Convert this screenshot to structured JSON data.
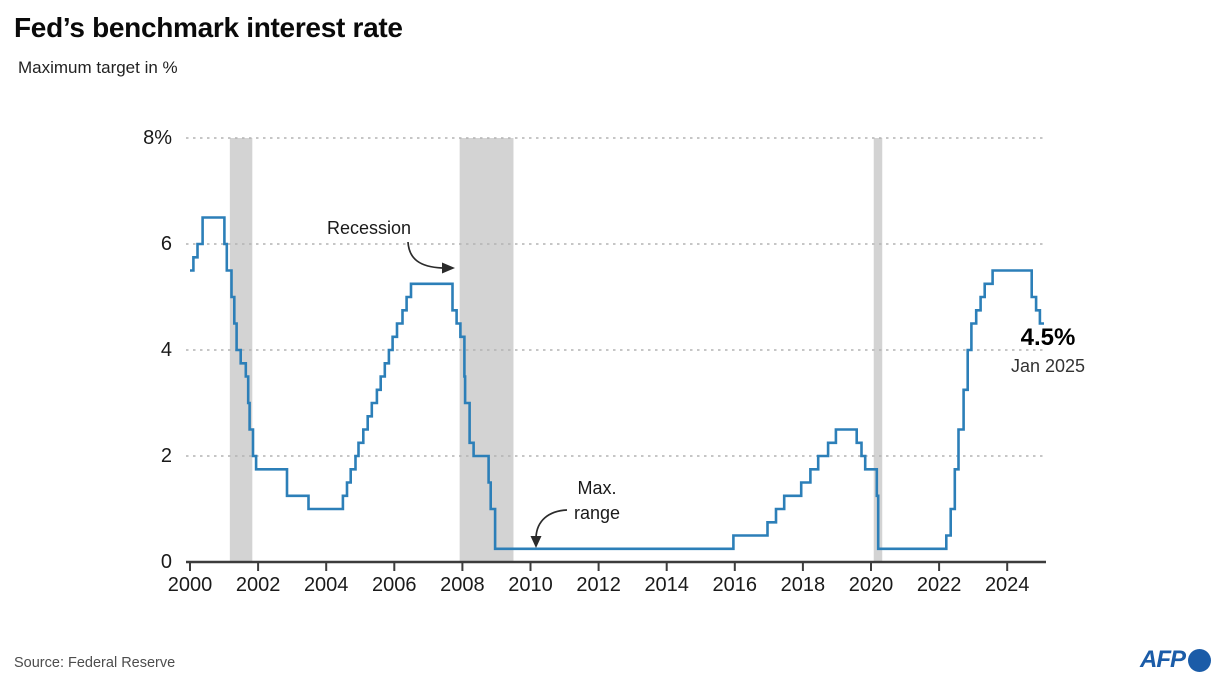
{
  "title": "Fed’s benchmark interest rate",
  "subtitle": "Maximum target in %",
  "source": "Source: Federal Reserve",
  "logo_text": "AFP",
  "colors": {
    "line": "#2c7fb8",
    "recession_band": "#d3d3d3",
    "grid": "#b3b3b3",
    "axis": "#3c3c3c",
    "tick_label": "#1a1a1a",
    "arrow": "#2b2b2b",
    "logo_blue": "#1b5ca8"
  },
  "chart_data": {
    "type": "line",
    "line_style": "step-after",
    "title": "Fed’s benchmark interest rate",
    "ylabel": "Maximum target in %",
    "xlim": [
      2000,
      2025.1
    ],
    "ylim": [
      0,
      8
    ],
    "xticks": [
      2000,
      2002,
      2004,
      2006,
      2008,
      2010,
      2012,
      2014,
      2016,
      2018,
      2020,
      2022,
      2024
    ],
    "ytick_values": [
      0,
      2,
      4,
      6,
      8
    ],
    "ytick_labels": [
      "0",
      "2",
      "4",
      "6",
      "8%"
    ],
    "grid": "horizontal-dashed",
    "legend": "none",
    "recession_bands": [
      [
        2001.17,
        2001.83
      ],
      [
        2007.92,
        2009.5
      ],
      [
        2020.08,
        2020.33
      ]
    ],
    "series": [
      {
        "name": "Fed benchmark interest rate, maximum target (%)",
        "points": [
          [
            2000.0,
            5.5
          ],
          [
            2000.1,
            5.75
          ],
          [
            2000.22,
            6.0
          ],
          [
            2000.37,
            6.5
          ],
          [
            2001.01,
            6.0
          ],
          [
            2001.08,
            5.5
          ],
          [
            2001.22,
            5.0
          ],
          [
            2001.3,
            4.5
          ],
          [
            2001.37,
            4.0
          ],
          [
            2001.49,
            3.75
          ],
          [
            2001.64,
            3.5
          ],
          [
            2001.71,
            3.0
          ],
          [
            2001.75,
            2.5
          ],
          [
            2001.85,
            2.0
          ],
          [
            2001.94,
            1.75
          ],
          [
            2002.85,
            1.25
          ],
          [
            2003.48,
            1.0
          ],
          [
            2004.49,
            1.25
          ],
          [
            2004.61,
            1.5
          ],
          [
            2004.72,
            1.75
          ],
          [
            2004.86,
            2.0
          ],
          [
            2004.95,
            2.25
          ],
          [
            2005.09,
            2.5
          ],
          [
            2005.22,
            2.75
          ],
          [
            2005.34,
            3.0
          ],
          [
            2005.49,
            3.25
          ],
          [
            2005.6,
            3.5
          ],
          [
            2005.72,
            3.75
          ],
          [
            2005.84,
            4.0
          ],
          [
            2005.95,
            4.25
          ],
          [
            2006.08,
            4.5
          ],
          [
            2006.24,
            4.75
          ],
          [
            2006.36,
            5.0
          ],
          [
            2006.49,
            5.25
          ],
          [
            2007.71,
            4.75
          ],
          [
            2007.83,
            4.5
          ],
          [
            2007.94,
            4.25
          ],
          [
            2008.06,
            3.5
          ],
          [
            2008.08,
            3.0
          ],
          [
            2008.21,
            2.25
          ],
          [
            2008.33,
            2.0
          ],
          [
            2008.77,
            1.5
          ],
          [
            2008.83,
            1.0
          ],
          [
            2008.96,
            0.25
          ],
          [
            2015.96,
            0.5
          ],
          [
            2016.96,
            0.75
          ],
          [
            2017.21,
            1.0
          ],
          [
            2017.45,
            1.25
          ],
          [
            2017.95,
            1.5
          ],
          [
            2018.22,
            1.75
          ],
          [
            2018.45,
            2.0
          ],
          [
            2018.74,
            2.25
          ],
          [
            2018.97,
            2.5
          ],
          [
            2019.58,
            2.25
          ],
          [
            2019.72,
            2.0
          ],
          [
            2019.83,
            1.75
          ],
          [
            2020.17,
            1.25
          ],
          [
            2020.21,
            0.25
          ],
          [
            2022.21,
            0.5
          ],
          [
            2022.34,
            1.0
          ],
          [
            2022.46,
            1.75
          ],
          [
            2022.57,
            2.5
          ],
          [
            2022.72,
            3.25
          ],
          [
            2022.84,
            4.0
          ],
          [
            2022.95,
            4.5
          ],
          [
            2023.09,
            4.75
          ],
          [
            2023.22,
            5.0
          ],
          [
            2023.34,
            5.25
          ],
          [
            2023.57,
            5.5
          ],
          [
            2024.72,
            5.0
          ],
          [
            2024.85,
            4.75
          ],
          [
            2024.96,
            4.5
          ],
          [
            2025.08,
            4.5
          ]
        ]
      }
    ],
    "annotations": {
      "recession": {
        "text": "Recession"
      },
      "max_range": {
        "line1": "Max.",
        "line2": "range"
      },
      "latest": {
        "value": "4.5%",
        "date": "Jan 2025"
      }
    }
  }
}
